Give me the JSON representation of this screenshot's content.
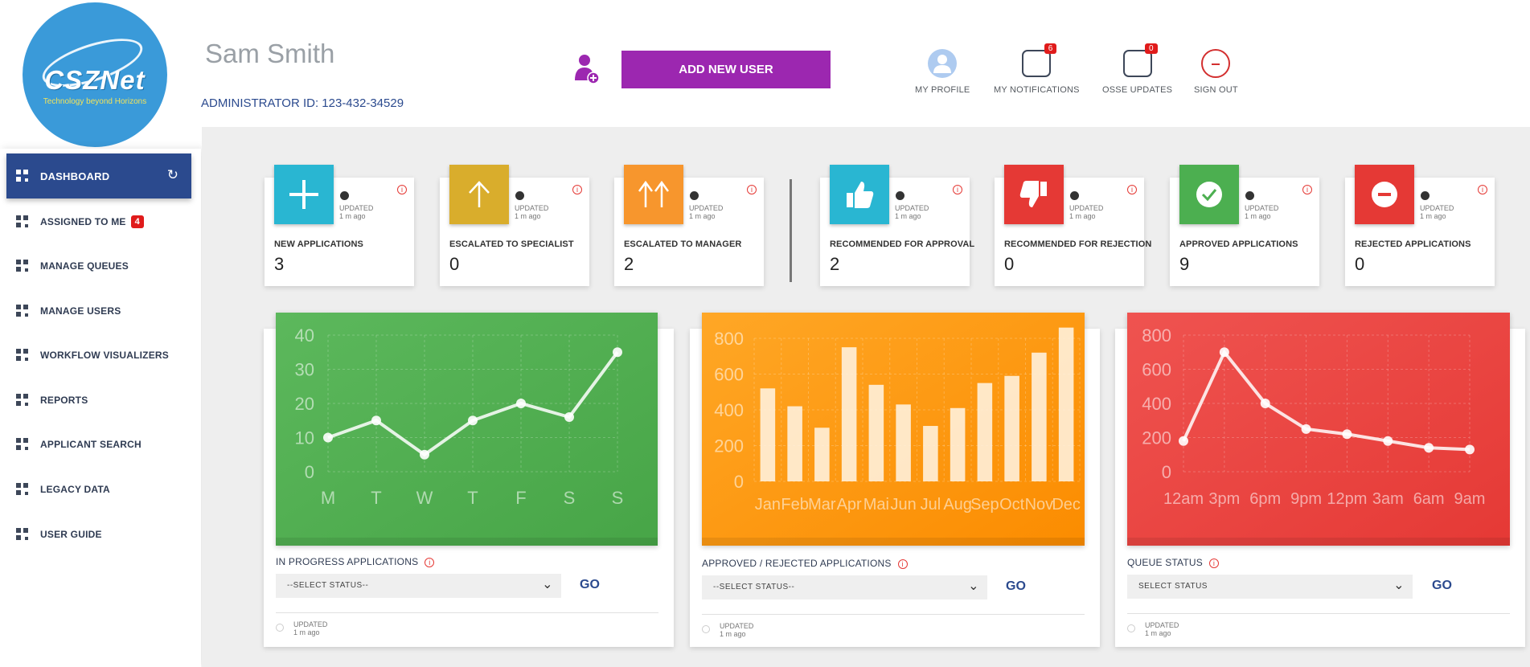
{
  "logo": {
    "brand": "CSZNet",
    "tagline": "Technology beyond Horizons"
  },
  "header": {
    "user_name": "Sam Smith",
    "admin_id": "ADMINISTRATOR ID: 123-432-34529",
    "add_user_label": "ADD NEW USER",
    "profile_label": "MY PROFILE",
    "notifications_label": "MY NOTIFICATIONS",
    "notifications_count": "6",
    "osse_label": "OSSE UPDATES",
    "osse_count": "0",
    "signout_label": "SIGN OUT"
  },
  "sidebar": {
    "items": [
      {
        "label": "DASHBOARD"
      },
      {
        "label": "ASSIGNED TO ME",
        "badge": "4"
      },
      {
        "label": "MANAGE QUEUES"
      },
      {
        "label": "MANAGE USERS"
      },
      {
        "label": "WORKFLOW VISUALIZERS"
      },
      {
        "label": "REPORTS"
      },
      {
        "label": "APPLICANT SEARCH"
      },
      {
        "label": "LEGACY DATA"
      },
      {
        "label": "USER GUIDE"
      }
    ]
  },
  "kpis": [
    {
      "label": "NEW APPLICATIONS",
      "value": "3",
      "updated": "UPDATED",
      "ago": "1 m ago",
      "color": "#29b6d2",
      "icon": "plus-icon"
    },
    {
      "label": "ESCALATED TO SPECIALIST",
      "value": "0",
      "updated": "UPDATED",
      "ago": "1 m ago",
      "color": "#d9ad2c",
      "icon": "arrow-up-icon"
    },
    {
      "label": "ESCALATED TO MANAGER",
      "value": "2",
      "updated": "UPDATED",
      "ago": "1 m ago",
      "color": "#f7962d",
      "icon": "double-arrow-up-icon"
    },
    {
      "label": "RECOMMENDED FOR APPROVAL",
      "value": "2",
      "updated": "UPDATED",
      "ago": "1 m ago",
      "color": "#29b6d2",
      "icon": "thumbs-up-icon"
    },
    {
      "label": "RECOMMENDED FOR REJECTION",
      "value": "0",
      "updated": "UPDATED",
      "ago": "1 m ago",
      "color": "#e53935",
      "icon": "thumbs-down-icon"
    },
    {
      "label": "APPROVED APPLICATIONS",
      "value": "9",
      "updated": "UPDATED",
      "ago": "1 m ago",
      "color": "#4caf50",
      "icon": "check-circle-icon"
    },
    {
      "label": "REJECTED APPLICATIONS",
      "value": "0",
      "updated": "UPDATED",
      "ago": "1 m ago",
      "color": "#e53935",
      "icon": "minus-circle-icon"
    }
  ],
  "cards": [
    {
      "title": "IN PROGRESS APPLICATIONS",
      "select": "--SELECT STATUS--",
      "go": "GO",
      "updated": "UPDATED",
      "ago": "1 m ago",
      "color": "#4caf50"
    },
    {
      "title": "APPROVED / REJECTED APPLICATIONS",
      "select": "--SELECT STATUS--",
      "go": "GO",
      "updated": "UPDATED",
      "ago": "1 m ago",
      "color": "#ff9800"
    },
    {
      "title": "QUEUE STATUS",
      "select": "SELECT STATUS",
      "go": "GO",
      "updated": "UPDATED",
      "ago": "1 m ago",
      "color": "#e53935"
    }
  ],
  "chart_data": [
    {
      "type": "line",
      "x": [
        "M",
        "T",
        "W",
        "T",
        "F",
        "S",
        "S"
      ],
      "values": [
        10,
        15,
        5,
        15,
        20,
        16,
        35
      ],
      "ylim": [
        0,
        40
      ],
      "yticks": [
        "0",
        "10",
        "20",
        "30",
        "40"
      ],
      "grid": true
    },
    {
      "type": "bar",
      "categories": [
        "Jan",
        "Feb",
        "Mar",
        "Apr",
        "Mai",
        "Jun",
        "Jul",
        "Aug",
        "Sep",
        "Oct",
        "Nov",
        "Dec"
      ],
      "values": [
        520,
        420,
        300,
        750,
        540,
        430,
        310,
        410,
        550,
        590,
        720,
        860
      ],
      "ylim": [
        0,
        800
      ],
      "yticks": [
        "0",
        "200",
        "400",
        "600",
        "800"
      ],
      "grid": true
    },
    {
      "type": "line",
      "x": [
        "12am",
        "3pm",
        "6pm",
        "9pm",
        "12pm",
        "3am",
        "6am",
        "9am"
      ],
      "values": [
        180,
        700,
        400,
        250,
        220,
        180,
        140,
        130
      ],
      "ylim": [
        0,
        800
      ],
      "yticks": [
        "0",
        "200",
        "400",
        "600",
        "800"
      ],
      "grid": true
    },
    {
      "note_unused": ""
    }
  ]
}
